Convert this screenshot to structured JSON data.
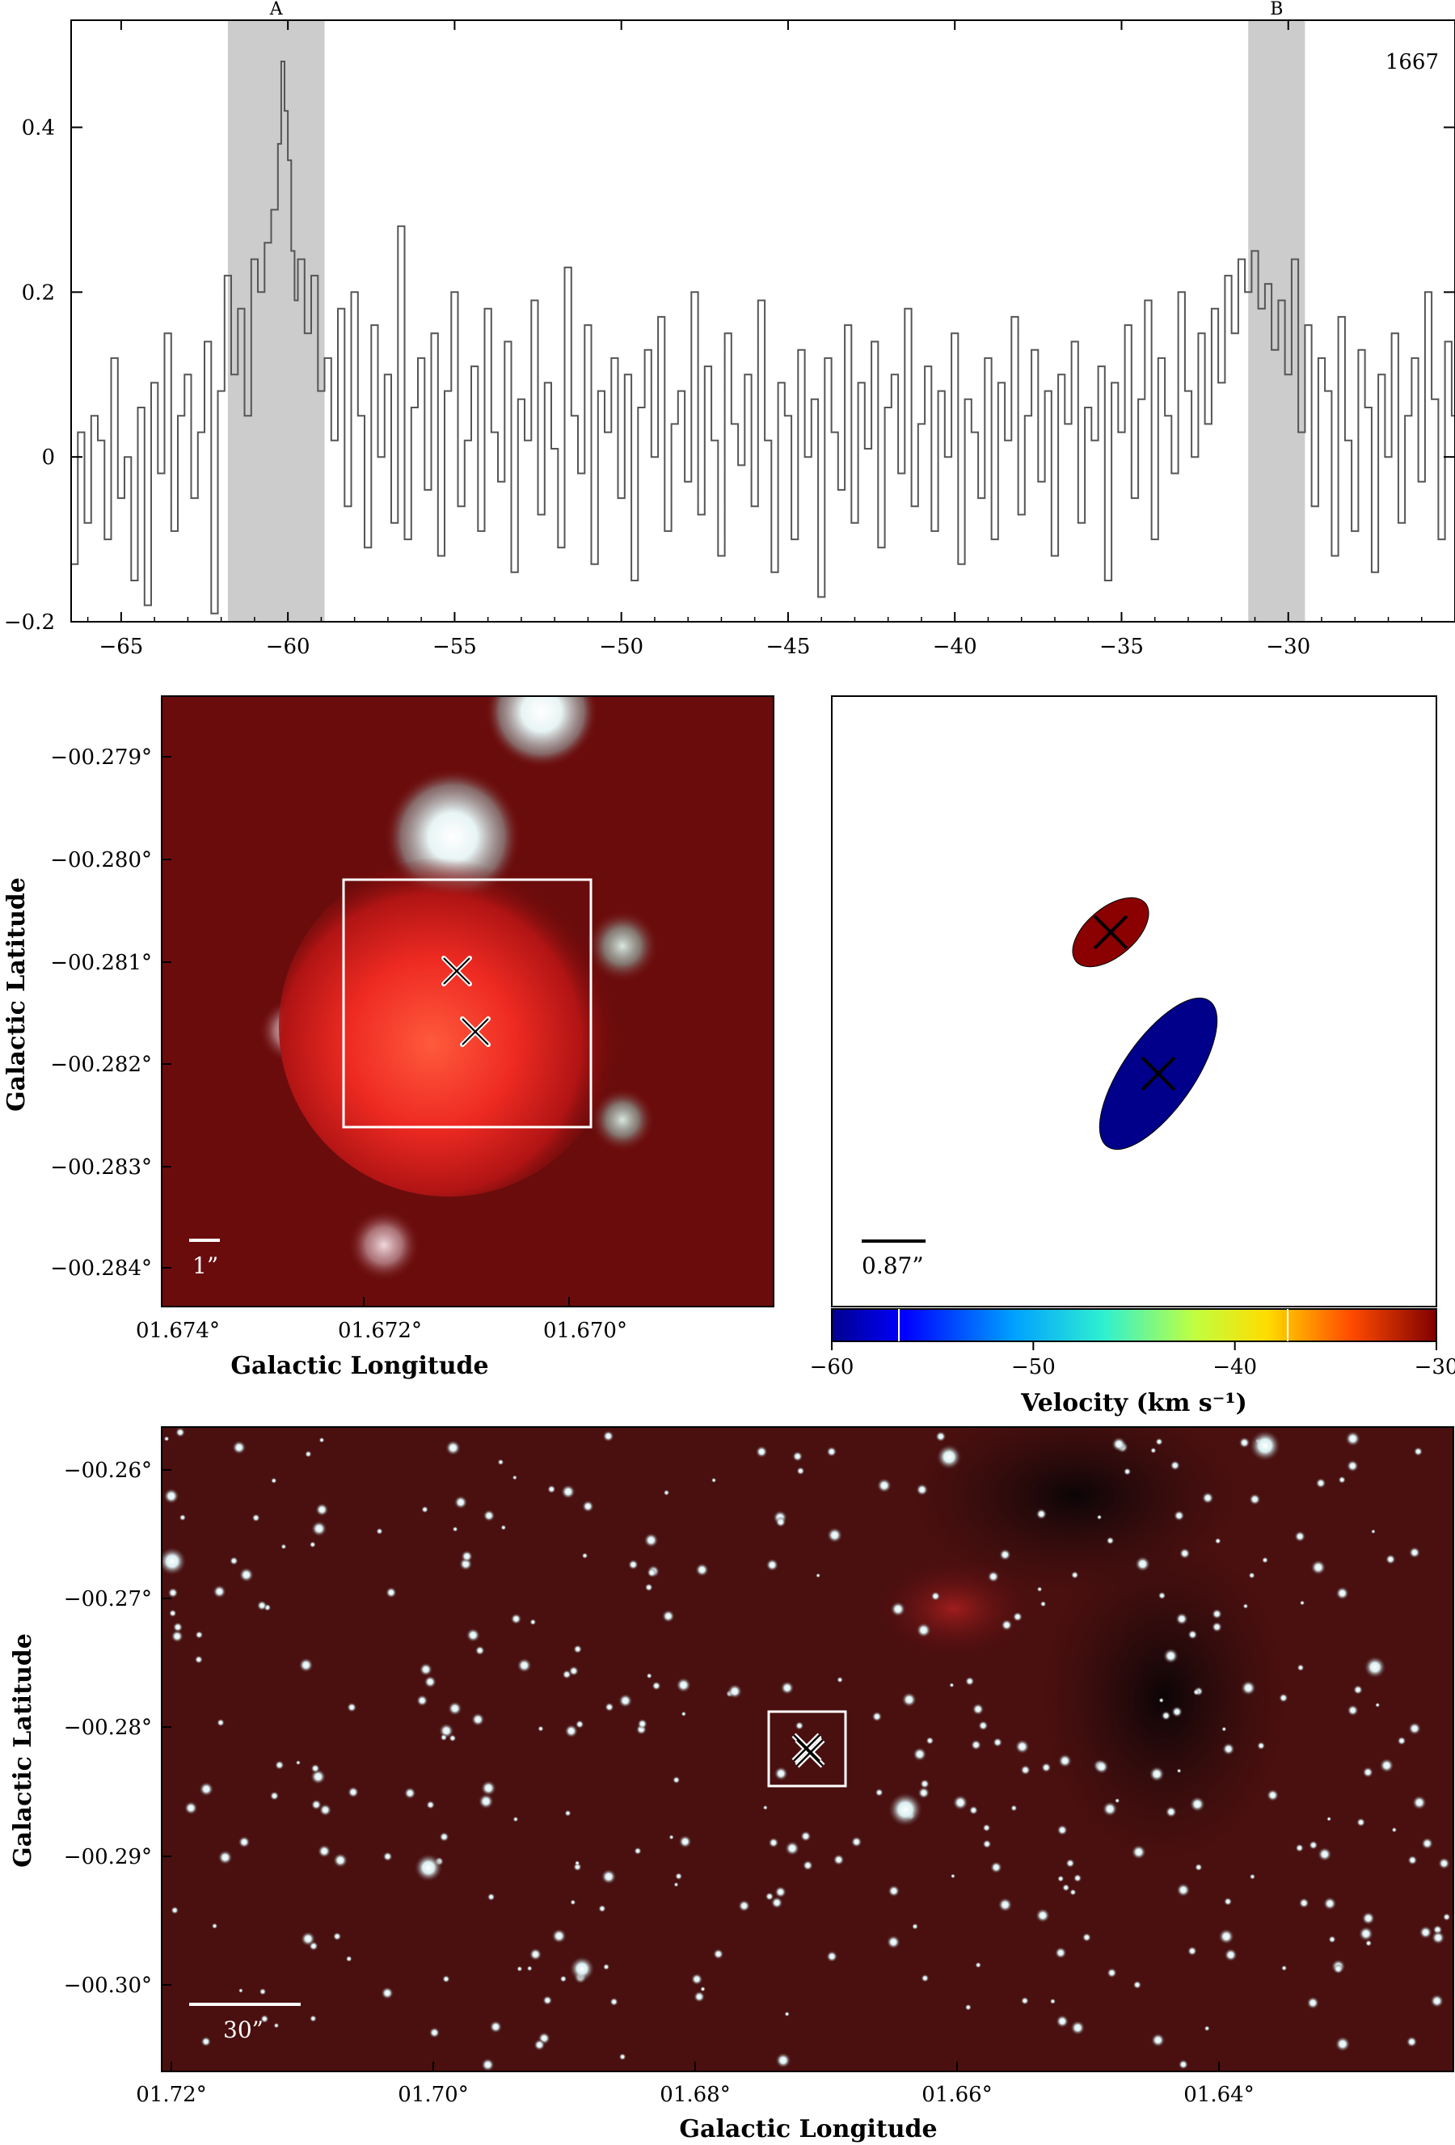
{
  "chart_data": [
    {
      "type": "line",
      "panel": "spectrum",
      "annotation": "1667",
      "xlim": [
        -66.5,
        -25
      ],
      "ylim": [
        -0.2,
        0.53
      ],
      "x_ticks": [
        -65,
        -60,
        -55,
        -50,
        -45,
        -40,
        -35,
        -30
      ],
      "x_tick_labels": [
        "−65",
        "−60",
        "−55",
        "−50",
        "−45",
        "−40",
        "−35",
        "−30"
      ],
      "y_ticks": [
        -0.2,
        0,
        0.2,
        0.4
      ],
      "y_tick_labels": [
        "−0.2",
        "0",
        "0.2",
        "0.4"
      ],
      "shaded_bands": [
        {
          "label": "A",
          "x0": -61.8,
          "x1": -58.9
        },
        {
          "label": "B",
          "x0": -31.2,
          "x1": -29.5
        }
      ],
      "line_color": "#555555",
      "band_color": "#cccccc",
      "series": [
        {
          "x": [
            -66.5,
            -66.3,
            -66.1,
            -65.9,
            -65.7,
            -65.5,
            -65.3,
            -65.1,
            -64.9,
            -64.7,
            -64.5,
            -64.3,
            -64.1,
            -63.9,
            -63.7,
            -63.5,
            -63.3,
            -63.1,
            -62.9,
            -62.7,
            -62.5,
            -62.3,
            -62.1,
            -61.9,
            -61.7,
            -61.5,
            -61.3,
            -61.1,
            -60.9,
            -60.7,
            -60.5,
            -60.3,
            -60.2,
            -60.1,
            -60.0,
            -59.9,
            -59.8,
            -59.7,
            -59.5,
            -59.3,
            -59.1,
            -58.9,
            -58.7,
            -58.5,
            -58.3,
            -58.1,
            -57.9,
            -57.7,
            -57.5,
            -57.3,
            -57.1,
            -56.9,
            -56.7,
            -56.5,
            -56.3,
            -56.1,
            -55.9,
            -55.7,
            -55.5,
            -55.3,
            -55.1,
            -54.9,
            -54.7,
            -54.5,
            -54.3,
            -54.1,
            -53.9,
            -53.7,
            -53.5,
            -53.3,
            -53.1,
            -52.9,
            -52.7,
            -52.5,
            -52.3,
            -52.1,
            -51.9,
            -51.7,
            -51.5,
            -51.3,
            -51.1,
            -50.9,
            -50.7,
            -50.5,
            -50.3,
            -50.1,
            -49.9,
            -49.7,
            -49.5,
            -49.3,
            -49.1,
            -48.9,
            -48.7,
            -48.5,
            -48.3,
            -48.1,
            -47.9,
            -47.7,
            -47.5,
            -47.3,
            -47.1,
            -46.9,
            -46.7,
            -46.5,
            -46.3,
            -46.1,
            -45.9,
            -45.7,
            -45.5,
            -45.3,
            -45.1,
            -44.9,
            -44.7,
            -44.5,
            -44.3,
            -44.1,
            -43.9,
            -43.7,
            -43.5,
            -43.3,
            -43.1,
            -42.9,
            -42.7,
            -42.5,
            -42.3,
            -42.1,
            -41.9,
            -41.7,
            -41.5,
            -41.3,
            -41.1,
            -40.9,
            -40.7,
            -40.5,
            -40.3,
            -40.1,
            -39.9,
            -39.7,
            -39.5,
            -39.3,
            -39.1,
            -38.9,
            -38.7,
            -38.5,
            -38.3,
            -38.1,
            -37.9,
            -37.7,
            -37.5,
            -37.3,
            -37.1,
            -36.9,
            -36.7,
            -36.5,
            -36.3,
            -36.1,
            -35.9,
            -35.7,
            -35.5,
            -35.3,
            -35.1,
            -34.9,
            -34.7,
            -34.5,
            -34.3,
            -34.1,
            -33.9,
            -33.7,
            -33.5,
            -33.3,
            -33.1,
            -32.9,
            -32.7,
            -32.5,
            -32.3,
            -32.1,
            -31.9,
            -31.7,
            -31.5,
            -31.3,
            -31.1,
            -30.9,
            -30.7,
            -30.5,
            -30.3,
            -30.1,
            -29.9,
            -29.7,
            -29.5,
            -29.3,
            -29.1,
            -28.9,
            -28.7,
            -28.5,
            -28.3,
            -28.1,
            -27.9,
            -27.7,
            -27.5,
            -27.3,
            -27.1,
            -26.9,
            -26.7,
            -26.5,
            -26.3,
            -26.1,
            -25.9,
            -25.7,
            -25.5,
            -25.3,
            -25.1
          ],
          "y": [
            -0.13,
            0.03,
            -0.08,
            0.05,
            0.02,
            -0.1,
            0.12,
            -0.05,
            0.0,
            -0.15,
            0.06,
            -0.18,
            0.09,
            -0.02,
            0.15,
            -0.09,
            0.05,
            0.1,
            -0.05,
            0.03,
            0.14,
            -0.19,
            0.08,
            0.22,
            0.1,
            0.18,
            0.05,
            0.24,
            0.2,
            0.26,
            0.3,
            0.38,
            0.48,
            0.42,
            0.36,
            0.25,
            0.19,
            0.24,
            0.15,
            0.22,
            0.08,
            0.12,
            0.02,
            0.18,
            -0.06,
            0.2,
            0.05,
            -0.11,
            0.16,
            0.0,
            0.1,
            -0.08,
            0.28,
            -0.1,
            0.06,
            0.12,
            -0.04,
            0.15,
            -0.12,
            0.08,
            0.2,
            -0.06,
            0.02,
            0.11,
            -0.09,
            0.18,
            0.03,
            -0.03,
            0.14,
            -0.14,
            0.07,
            0.02,
            0.19,
            -0.07,
            0.09,
            0.01,
            -0.11,
            0.23,
            0.05,
            -0.02,
            0.16,
            -0.13,
            0.08,
            0.03,
            0.12,
            -0.05,
            0.1,
            -0.15,
            0.06,
            0.13,
            0.0,
            0.17,
            -0.09,
            0.04,
            0.08,
            -0.03,
            0.2,
            -0.07,
            0.11,
            0.02,
            -0.12,
            0.15,
            0.04,
            -0.01,
            0.1,
            -0.06,
            0.19,
            0.02,
            -0.14,
            0.09,
            0.05,
            -0.1,
            0.13,
            0.0,
            0.07,
            -0.17,
            0.12,
            0.03,
            -0.04,
            0.16,
            -0.08,
            0.09,
            0.01,
            0.14,
            -0.11,
            0.06,
            0.1,
            -0.02,
            0.18,
            -0.06,
            0.04,
            0.11,
            -0.09,
            0.08,
            0.0,
            0.15,
            -0.13,
            0.07,
            0.03,
            -0.05,
            0.12,
            -0.1,
            0.09,
            0.02,
            0.17,
            -0.07,
            0.05,
            0.13,
            -0.03,
            0.08,
            -0.12,
            0.1,
            0.04,
            0.14,
            -0.08,
            0.06,
            0.02,
            0.11,
            -0.15,
            0.09,
            0.03,
            0.16,
            -0.05,
            0.07,
            0.19,
            -0.1,
            0.12,
            0.05,
            -0.02,
            0.2,
            0.08,
            0.0,
            0.15,
            0.04,
            0.18,
            0.09,
            0.22,
            0.15,
            0.24,
            0.2,
            0.25,
            0.18,
            0.21,
            0.13,
            0.19,
            0.1,
            0.24,
            0.03,
            0.16,
            -0.06,
            0.12,
            0.08,
            -0.12,
            0.17,
            0.02,
            -0.09,
            0.13,
            0.06,
            -0.14,
            0.1,
            0.0,
            0.15,
            -0.08,
            0.05,
            0.12,
            -0.03,
            0.2,
            0.07,
            -0.1,
            0.14,
            0.05
          ]
        }
      ]
    },
    {
      "type": "scatter",
      "panel": "rgb-zoom",
      "xlabel": "Galactic Longitude",
      "ylabel": "Galactic Latitude",
      "x_tick_labels": [
        "01.674°",
        "01.672°",
        "01.670°"
      ],
      "y_tick_labels": [
        "−00.279°",
        "−00.280°",
        "−00.281°",
        "−00.282°",
        "−00.283°",
        "−00.284°"
      ],
      "scale_bar_label": "1”",
      "markers": [
        {
          "l": 1.6713,
          "b": -0.28112
        },
        {
          "l": 1.6711,
          "b": -0.28168
        }
      ]
    },
    {
      "type": "scatter",
      "panel": "velocity-ellipses",
      "xlabel": "Velocity (km s⁻¹)",
      "colorbar_range": [
        -60,
        -30
      ],
      "colorbar_tick_labels": [
        "−60",
        "−50",
        "−40",
        "−30"
      ],
      "scale_bar_label": "0.87”",
      "components": [
        {
          "velocity": -30,
          "color": "#8b0000"
        },
        {
          "velocity": -60,
          "color": "#00008b"
        }
      ]
    },
    {
      "type": "scatter",
      "panel": "rgb-wide",
      "xlabel": "Galactic Longitude",
      "ylabel": "Galactic Latitude",
      "x_tick_labels": [
        "01.72°",
        "01.70°",
        "01.68°",
        "01.66°",
        "01.64°"
      ],
      "y_tick_labels": [
        "−00.26°",
        "−00.27°",
        "−00.28°",
        "−00.29°",
        "−00.30°"
      ],
      "scale_bar_label": "30”"
    }
  ]
}
